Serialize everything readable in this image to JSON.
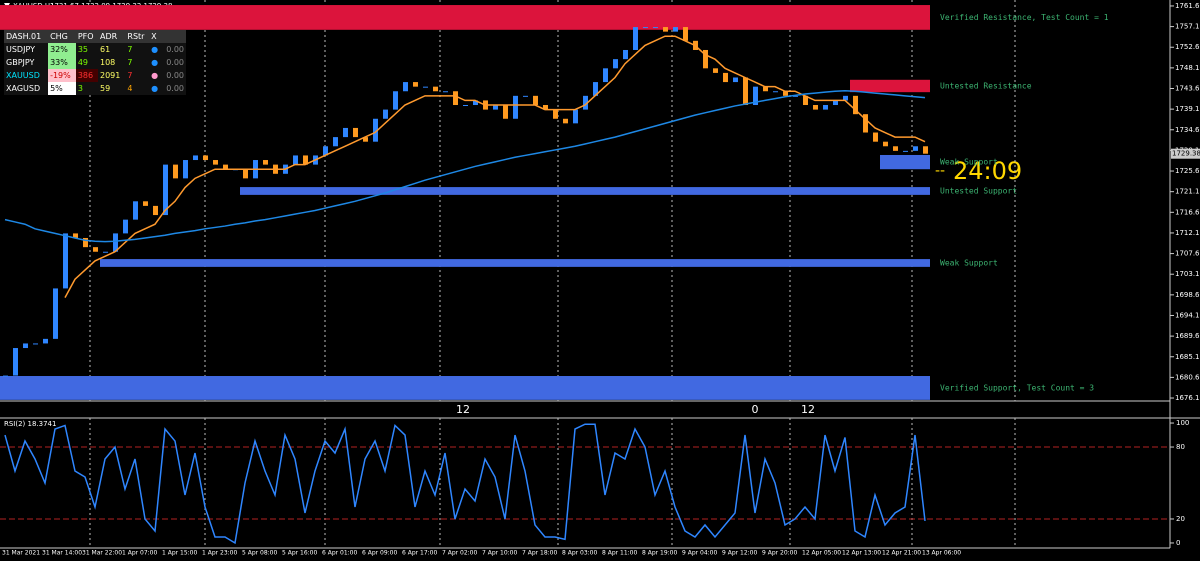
{
  "header": {
    "symbol": "XAUUSD,H1",
    "quote": "1731.67 1732.09 1729.32 1729.38"
  },
  "dashboard": {
    "columns": [
      "DASH.01",
      "CHG",
      "PFO",
      "ADR",
      "RStr",
      "X"
    ],
    "rows": [
      [
        "USDJPY",
        "32%",
        "35",
        "61",
        "7",
        "0.00"
      ],
      [
        "GBPJPY",
        "33%",
        "49",
        "108",
        "7",
        "0.00"
      ],
      [
        "XAUUSD",
        "-19%",
        "386",
        "2091",
        "7",
        "0.00"
      ],
      [
        "XAGUSD",
        "5%",
        "3",
        "59",
        "4",
        "0.00"
      ]
    ]
  },
  "timer": {
    "dash": "--",
    "text": "24:09"
  },
  "chart_data": [
    {
      "type": "candlestick",
      "up_color": "#2f86ff",
      "down_color": "#ff9a1f",
      "ylim": [
        1675.45,
        1762.9
      ],
      "yticks": [
        {
          "value": 1761.6,
          "label": "1761.60"
        },
        {
          "value": 1757.1,
          "label": "1757.10"
        },
        {
          "value": 1752.6,
          "label": "1752.60"
        },
        {
          "value": 1748.1,
          "label": "1748.10"
        },
        {
          "value": 1743.6,
          "label": "1743.60"
        },
        {
          "value": 1739.1,
          "label": "1739.10"
        },
        {
          "value": 1734.6,
          "label": "1734.60"
        },
        {
          "value": 1730.1,
          "label": "1730.10"
        },
        {
          "value": 1725.6,
          "label": "1725.60"
        },
        {
          "value": 1721.1,
          "label": "1721.10"
        },
        {
          "value": 1716.6,
          "label": "1716.60"
        },
        {
          "value": 1712.1,
          "label": "1712.10"
        },
        {
          "value": 1707.6,
          "label": "1707.60"
        },
        {
          "value": 1703.1,
          "label": "1703.10"
        },
        {
          "value": 1698.6,
          "label": "1698.60"
        },
        {
          "value": 1694.1,
          "label": "1694.10"
        },
        {
          "value": 1689.6,
          "label": "1689.60"
        },
        {
          "value": 1685.1,
          "label": "1685.10"
        },
        {
          "value": 1680.6,
          "label": "1680.60"
        },
        {
          "value": 1676.1,
          "label": "1676.10"
        }
      ],
      "last_price": {
        "value": 1729.38,
        "label": "1729.38"
      },
      "period_marks": [
        "12",
        "0",
        "12"
      ],
      "series": [
        {
          "values": [
            1681,
            1687,
            1688,
            1688,
            1689,
            1700,
            1712,
            1711,
            1709,
            1708,
            1708,
            1712,
            1715,
            1719,
            1718,
            1716,
            1727,
            1724,
            1728,
            1729,
            1728,
            1727,
            1726,
            1726,
            1724,
            1728,
            1727,
            1725,
            1727,
            1729,
            1727,
            1729,
            1731,
            1733,
            1735,
            1733,
            1732,
            1737,
            1739,
            1743,
            1745,
            1744,
            1744,
            1743,
            1743,
            1740,
            1740,
            1741,
            1739,
            1740,
            1737,
            1742,
            1742,
            1740,
            1739,
            1737,
            1736,
            1739,
            1742,
            1745,
            1748,
            1750,
            1752,
            1757,
            1757,
            1757,
            1756,
            1757,
            1754,
            1752,
            1748,
            1747,
            1745,
            1746,
            1740,
            1744,
            1743,
            1743,
            1742,
            1742,
            1740,
            1739,
            1740,
            1741,
            1742,
            1738,
            1734,
            1732,
            1731,
            1730,
            1730,
            1731,
            1729.38
          ]
        },
        {
          "color": "#ff9a2e",
          "values": [
            null,
            null,
            null,
            null,
            null,
            null,
            1698,
            1702,
            1704,
            1706,
            1707,
            1708,
            1710,
            1712,
            1713,
            1714,
            1717,
            1719,
            1722,
            1724,
            1725,
            1726,
            1726,
            1726,
            1726,
            1726,
            1726,
            1726,
            1726,
            1727,
            1727,
            1728,
            1729,
            1730,
            1731,
            1732,
            1733,
            1734,
            1736,
            1738,
            1740,
            1741,
            1742,
            1742,
            1742,
            1742,
            1741,
            1741,
            1740,
            1740,
            1740,
            1740,
            1740,
            1740,
            1739,
            1739,
            1739,
            1739,
            1740,
            1742,
            1744,
            1746,
            1749,
            1751,
            1753,
            1754,
            1755,
            1755,
            1754,
            1753,
            1751,
            1750,
            1748,
            1747,
            1746,
            1745,
            1744,
            1744,
            1743,
            1743,
            1742,
            1741,
            1741,
            1741,
            1741,
            1739,
            1737,
            1735,
            1734,
            1733,
            1733,
            1733,
            1732
          ]
        },
        {
          "color": "#1e88e5",
          "values": [
            1715,
            1714.5,
            1714,
            1713,
            1712.5,
            1712,
            1711.5,
            1711,
            1710.5,
            1710.3,
            1710.2,
            1710.3,
            1710.5,
            1710.7,
            1711,
            1711.3,
            1711.6,
            1712,
            1712.3,
            1712.6,
            1713,
            1713.3,
            1713.6,
            1714,
            1714.3,
            1714.7,
            1715,
            1715.4,
            1715.8,
            1716.2,
            1716.6,
            1717,
            1717.5,
            1718,
            1718.5,
            1719,
            1719.6,
            1720.2,
            1720.8,
            1721.5,
            1722.2,
            1722.9,
            1723.6,
            1724.2,
            1724.8,
            1725.4,
            1726,
            1726.6,
            1727.1,
            1727.6,
            1728.1,
            1728.6,
            1729,
            1729.4,
            1729.8,
            1730.2,
            1730.6,
            1731,
            1731.5,
            1732,
            1732.5,
            1733,
            1733.6,
            1734.2,
            1734.8,
            1735.4,
            1736,
            1736.6,
            1737.2,
            1737.8,
            1738.3,
            1738.8,
            1739.3,
            1739.8,
            1740.2,
            1740.6,
            1741,
            1741.4,
            1741.8,
            1742.1,
            1742.4,
            1742.6,
            1742.8,
            1743,
            1743.1,
            1743,
            1742.8,
            1742.6,
            1742.4,
            1742.2,
            1742,
            1741.8,
            1741.6
          ]
        }
      ],
      "zones": [
        {
          "label": "Verified Resistance, Test Count = 1",
          "from": 1756.4,
          "to": 1761.8,
          "start": 0,
          "color": "#dc143c"
        },
        {
          "label": "Untested Resistance",
          "from": 1742.8,
          "to": 1745.5,
          "start": 85,
          "color": "#dc143c"
        },
        {
          "label": "Weak Support",
          "from": 1726.0,
          "to": 1729.1,
          "start": 88,
          "color": "#4169e1"
        },
        {
          "label": "Untested Support",
          "from": 1720.4,
          "to": 1722.1,
          "start": 24,
          "color": "#4169e1"
        },
        {
          "label": "Weak Support",
          "from": 1704.7,
          "to": 1706.4,
          "start": 10,
          "color": "#4169e1"
        },
        {
          "label": "Verified Support, Test Count = 3",
          "from": 1675.7,
          "to": 1680.9,
          "start": 0,
          "color": "#4169e1"
        }
      ]
    },
    {
      "type": "line",
      "title": "RSI(2) 18.3741",
      "ylim": [
        -4.2,
        104.2
      ],
      "yticks": [
        0,
        20,
        80,
        100
      ],
      "levels": [
        20,
        80
      ],
      "series": [
        {
          "color": "#2f86ff",
          "values": [
            90,
            60,
            85,
            70,
            50,
            95,
            98,
            60,
            55,
            30,
            70,
            80,
            45,
            70,
            20,
            10,
            95,
            85,
            40,
            75,
            30,
            5,
            5,
            0,
            50,
            85,
            60,
            40,
            90,
            70,
            25,
            60,
            85,
            75,
            95,
            30,
            70,
            85,
            60,
            98,
            90,
            30,
            60,
            40,
            75,
            20,
            45,
            35,
            70,
            55,
            20,
            90,
            60,
            15,
            5,
            5,
            3,
            95,
            99,
            99,
            40,
            75,
            70,
            95,
            80,
            40,
            60,
            30,
            10,
            5,
            15,
            5,
            15,
            25,
            90,
            25,
            70,
            50,
            15,
            20,
            30,
            20,
            90,
            60,
            88,
            10,
            5,
            40,
            15,
            25,
            30,
            90,
            18.3741
          ]
        }
      ],
      "x_labels": [
        "31 Mar 2021",
        "31 Mar 14:00",
        "31 Mar 22:00",
        "1 Apr 07:00",
        "1 Apr 15:00",
        "1 Apr 23:00",
        "5 Apr 08:00",
        "5 Apr 16:00",
        "6 Apr 01:00",
        "6 Apr 09:00",
        "6 Apr 17:00",
        "7 Apr 02:00",
        "7 Apr 10:00",
        "7 Apr 18:00",
        "8 Apr 03:00",
        "8 Apr 11:00",
        "8 Apr 19:00",
        "9 Apr 04:00",
        "9 Apr 12:00",
        "9 Apr 20:00",
        "12 Apr 05:00",
        "12 Apr 13:00",
        "12 Apr 21:00",
        "13 Apr 06:00"
      ]
    }
  ]
}
